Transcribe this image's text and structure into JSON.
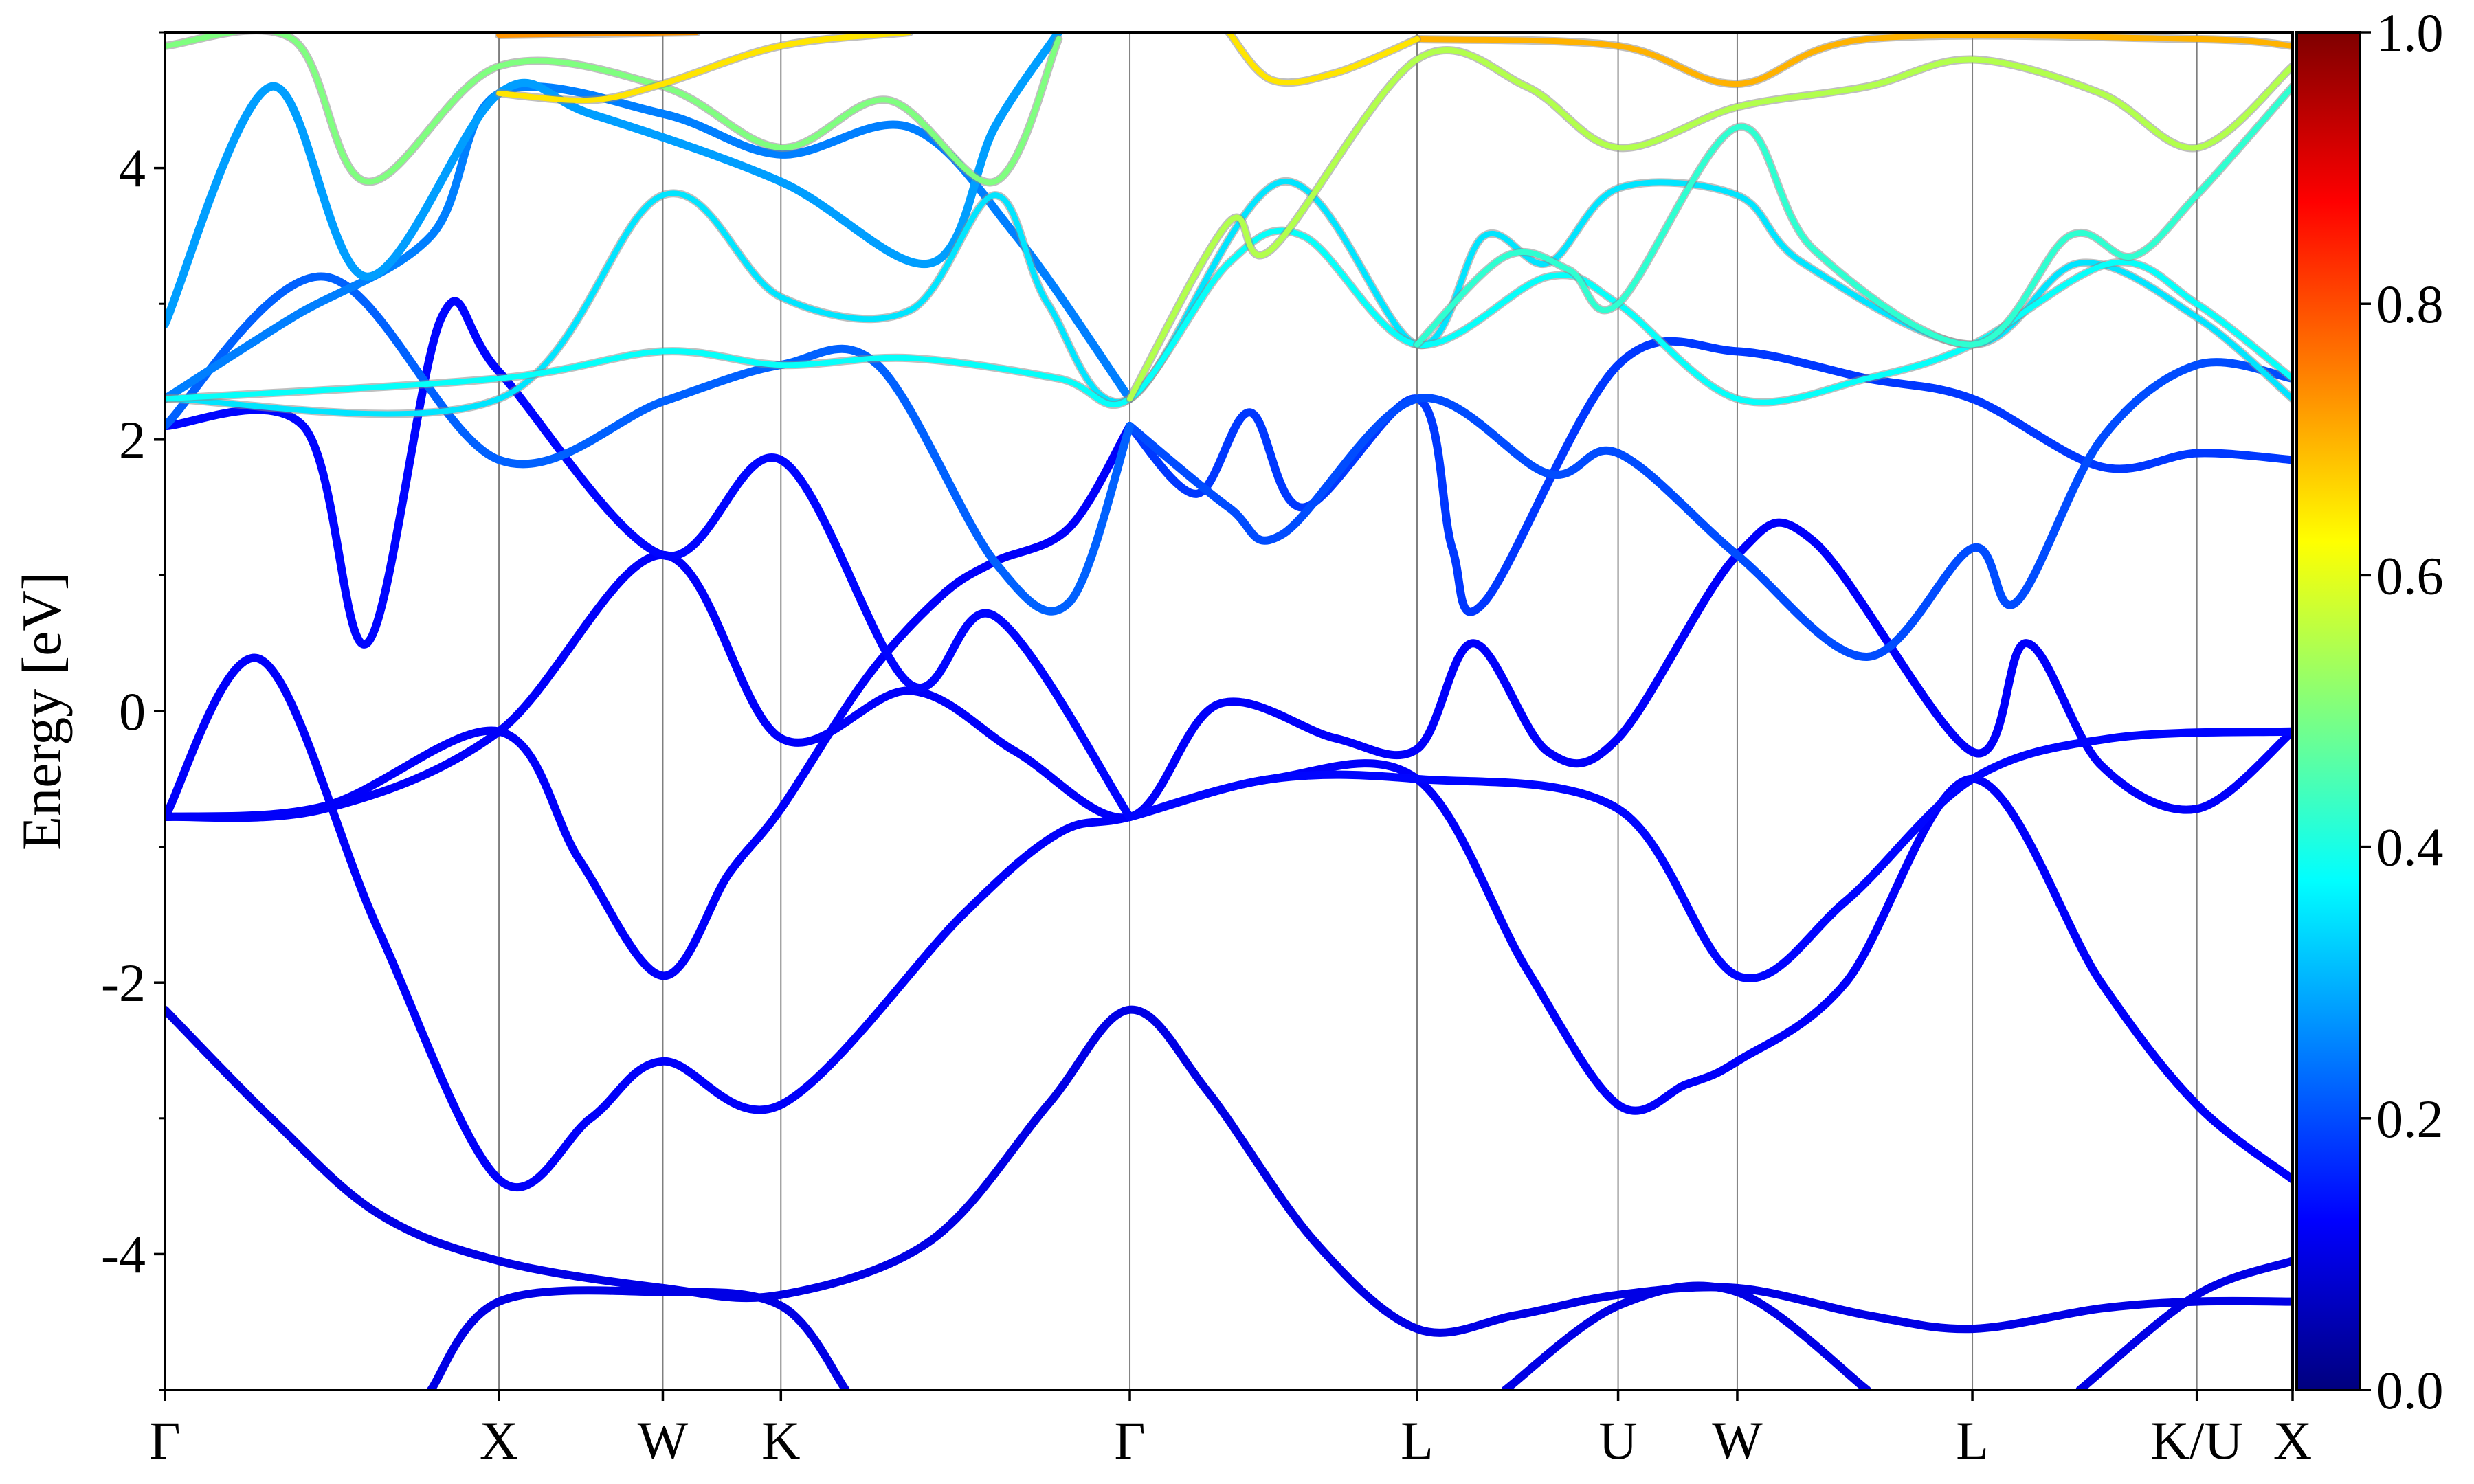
{
  "chart_data": {
    "type": "line",
    "title": "",
    "xlabel": "",
    "ylabel": "Energy [eV]",
    "ylim": [
      -5,
      5
    ],
    "yticks": [
      -4,
      -2,
      0,
      2,
      4
    ],
    "ytick_labels": [
      "-4",
      "-2",
      "0",
      "2",
      "4"
    ],
    "yminor_step": 1,
    "xlim": [
      0,
      20
    ],
    "kpoints": [
      {
        "label": "Γ",
        "x": 0
      },
      {
        "label": "X",
        "x": 3.14
      },
      {
        "label": "W",
        "x": 4.68
      },
      {
        "label": "K",
        "x": 5.79
      },
      {
        "label": "Γ",
        "x": 9.07
      },
      {
        "label": "L",
        "x": 11.77
      },
      {
        "label": "U",
        "x": 13.66
      },
      {
        "label": "W",
        "x": 14.78
      },
      {
        "label": "L",
        "x": 16.99
      },
      {
        "label": "K/U",
        "x": 19.1
      },
      {
        "label": "X",
        "x": 20
      }
    ],
    "vertical_lines": true,
    "grid": false,
    "colorbar": {
      "range": [
        0,
        1
      ],
      "ticks": [
        "0.0",
        "0.2",
        "0.4",
        "0.6",
        "0.8",
        "1.0"
      ],
      "colormap": "jet",
      "stops": [
        "#00007f",
        "#0000ff",
        "#007fff",
        "#00ffff",
        "#7fff7f",
        "#ffff00",
        "#ff7f00",
        "#ff0000",
        "#7f0000"
      ]
    },
    "series": [
      {
        "c": 0.1,
        "points": [
          [
            0,
            -2.2
          ],
          [
            1.0,
            -3.0
          ],
          [
            2.0,
            -3.7
          ],
          [
            3.14,
            -4.05
          ],
          [
            4.68,
            -4.25
          ],
          [
            5.79,
            -4.3
          ],
          [
            7.2,
            -3.9
          ],
          [
            8.3,
            -2.9
          ],
          [
            9.07,
            -2.2
          ],
          [
            9.8,
            -2.8
          ],
          [
            10.8,
            -3.9
          ],
          [
            11.77,
            -4.55
          ],
          [
            12.7,
            -4.45
          ],
          [
            13.66,
            -4.3
          ],
          [
            14.78,
            -4.25
          ],
          [
            16.0,
            -4.45
          ],
          [
            16.99,
            -4.55
          ],
          [
            18.2,
            -4.4
          ],
          [
            19.1,
            -4.35
          ],
          [
            20,
            -4.35
          ]
        ]
      },
      {
        "c": 0.1,
        "points": [
          [
            2.5,
            -5.0
          ],
          [
            3.14,
            -4.35
          ],
          [
            4.68,
            -4.28
          ],
          [
            5.79,
            -4.38
          ],
          [
            6.4,
            -5.0
          ]
        ]
      },
      {
        "c": 0.1,
        "points": [
          [
            12.6,
            -5.0
          ],
          [
            13.66,
            -4.38
          ],
          [
            14.78,
            -4.28
          ],
          [
            16.0,
            -5.0
          ]
        ]
      },
      {
        "c": 0.1,
        "points": [
          [
            18.0,
            -5.0
          ],
          [
            19.1,
            -4.3
          ],
          [
            20,
            -4.05
          ]
        ]
      },
      {
        "c": 0.12,
        "points": [
          [
            0,
            -0.78
          ],
          [
            0.9,
            0.38
          ],
          [
            2.0,
            -1.6
          ],
          [
            3.14,
            -3.45
          ],
          [
            4.0,
            -3.0
          ],
          [
            4.68,
            -2.58
          ],
          [
            5.79,
            -2.9
          ],
          [
            7.5,
            -1.5
          ],
          [
            8.4,
            -0.9
          ],
          [
            9.07,
            -0.78
          ],
          [
            10.4,
            -0.5
          ],
          [
            11.77,
            -0.5
          ],
          [
            12.8,
            -1.9
          ],
          [
            13.66,
            -2.9
          ],
          [
            14.3,
            -2.75
          ],
          [
            14.78,
            -2.58
          ],
          [
            15.8,
            -2.0
          ],
          [
            16.99,
            -0.5
          ],
          [
            18.2,
            -2.0
          ],
          [
            19.1,
            -2.9
          ],
          [
            20,
            -3.45
          ]
        ]
      },
      {
        "c": 0.12,
        "points": [
          [
            0,
            -0.78
          ],
          [
            1.5,
            -0.7
          ],
          [
            3.14,
            -0.15
          ],
          [
            3.9,
            -1.1
          ],
          [
            4.68,
            -1.95
          ],
          [
            5.3,
            -1.2
          ],
          [
            5.79,
            -0.72
          ],
          [
            6.6,
            0.25
          ],
          [
            7.3,
            0.85
          ],
          [
            7.8,
            1.1
          ],
          [
            8.5,
            1.35
          ],
          [
            9.07,
            2.1
          ]
        ]
      },
      {
        "c": 0.12,
        "points": [
          [
            0,
            -0.78
          ],
          [
            1.5,
            -0.72
          ],
          [
            3.14,
            -0.15
          ],
          [
            4.68,
            1.15
          ],
          [
            5.79,
            -0.2
          ],
          [
            7.0,
            0.15
          ],
          [
            8.0,
            -0.3
          ],
          [
            9.07,
            -0.78
          ],
          [
            9.9,
            0.05
          ],
          [
            11.0,
            -0.2
          ],
          [
            11.77,
            -0.28
          ],
          [
            12.3,
            0.5
          ],
          [
            13.0,
            -0.3
          ],
          [
            13.66,
            -0.2
          ],
          [
            14.78,
            1.15
          ],
          [
            15.5,
            1.25
          ],
          [
            16.99,
            -0.3
          ],
          [
            17.5,
            0.5
          ],
          [
            18.2,
            -0.4
          ],
          [
            19.1,
            -0.72
          ],
          [
            20,
            -0.15
          ]
        ]
      },
      {
        "c": 0.13,
        "points": [
          [
            9.07,
            -0.78
          ],
          [
            10.4,
            -0.5
          ],
          [
            11.77,
            -0.5
          ],
          [
            13.66,
            -0.72
          ],
          [
            14.78,
            -1.95
          ],
          [
            15.8,
            -1.4
          ],
          [
            16.99,
            -0.5
          ],
          [
            18.3,
            -0.2
          ],
          [
            20,
            -0.15
          ]
        ]
      },
      {
        "c": 0.13,
        "points": [
          [
            9.07,
            -0.78
          ],
          [
            7.8,
            0.7
          ],
          [
            7.0,
            0.2
          ],
          [
            5.79,
            1.85
          ],
          [
            4.68,
            1.15
          ],
          [
            3.14,
            2.5
          ],
          [
            2.6,
            2.9
          ],
          [
            1.9,
            0.5
          ],
          [
            1.3,
            2.1
          ],
          [
            0,
            2.1
          ]
        ]
      },
      {
        "c": 0.18,
        "points": [
          [
            9.07,
            2.1
          ],
          [
            9.7,
            1.6
          ],
          [
            10.2,
            2.2
          ],
          [
            10.7,
            1.5
          ],
          [
            11.77,
            2.3
          ],
          [
            12.1,
            1.2
          ],
          [
            12.4,
            0.8
          ],
          [
            13.66,
            2.55
          ],
          [
            14.78,
            2.65
          ],
          [
            16.0,
            2.45
          ],
          [
            16.99,
            2.3
          ],
          [
            18.2,
            1.8
          ],
          [
            19.1,
            1.9
          ],
          [
            20,
            1.85
          ]
        ]
      },
      {
        "c": 0.2,
        "points": [
          [
            9.07,
            2.1
          ],
          [
            10.0,
            1.5
          ],
          [
            10.5,
            1.3
          ],
          [
            11.77,
            2.3
          ],
          [
            13.0,
            1.75
          ],
          [
            13.66,
            1.9
          ],
          [
            14.78,
            1.15
          ],
          [
            16.0,
            0.4
          ],
          [
            16.99,
            1.2
          ],
          [
            17.4,
            0.8
          ],
          [
            18.2,
            2.0
          ],
          [
            19.1,
            2.55
          ],
          [
            20,
            2.45
          ]
        ]
      },
      {
        "c": 0.22,
        "points": [
          [
            0,
            2.1
          ],
          [
            1.5,
            3.2
          ],
          [
            3.14,
            1.85
          ],
          [
            4.68,
            2.28
          ],
          [
            5.79,
            2.55
          ],
          [
            6.7,
            2.55
          ],
          [
            7.8,
            1.1
          ],
          [
            8.5,
            0.8
          ],
          [
            9.07,
            2.1
          ]
        ]
      },
      {
        "c": 0.25,
        "points": [
          [
            0,
            2.3
          ],
          [
            1.2,
            2.9
          ],
          [
            2.5,
            3.5
          ],
          [
            3.14,
            4.55
          ],
          [
            4.68,
            4.4
          ],
          [
            5.79,
            4.1
          ],
          [
            7.0,
            4.3
          ],
          [
            8.0,
            3.5
          ],
          [
            9.07,
            2.3
          ]
        ]
      },
      {
        "c": 0.28,
        "points": [
          [
            0,
            2.85
          ],
          [
            1.0,
            4.6
          ],
          [
            1.9,
            3.2
          ],
          [
            3.14,
            4.55
          ],
          [
            4.0,
            4.4
          ],
          [
            5.79,
            3.9
          ],
          [
            7.2,
            3.3
          ],
          [
            7.8,
            4.3
          ],
          [
            8.4,
            5.0
          ]
        ]
      },
      {
        "c": 0.35,
        "points": [
          [
            0,
            2.3
          ],
          [
            3.14,
            2.3
          ],
          [
            4.68,
            3.8
          ],
          [
            5.79,
            3.05
          ],
          [
            7.0,
            2.95
          ],
          [
            7.8,
            3.8
          ],
          [
            8.3,
            3.0
          ],
          [
            9.07,
            2.3
          ],
          [
            10.5,
            3.9
          ],
          [
            11.77,
            2.7
          ],
          [
            12.4,
            3.5
          ],
          [
            13.0,
            3.3
          ],
          [
            13.66,
            3.85
          ],
          [
            14.78,
            3.8
          ],
          [
            15.4,
            3.3
          ],
          [
            16.99,
            2.7
          ],
          [
            18.0,
            3.3
          ],
          [
            19.1,
            2.9
          ],
          [
            20,
            2.3
          ]
        ]
      },
      {
        "c": 0.38,
        "points": [
          [
            0,
            2.3
          ],
          [
            3.14,
            2.45
          ],
          [
            4.68,
            2.65
          ],
          [
            5.79,
            2.55
          ],
          [
            7.0,
            2.6
          ],
          [
            8.4,
            2.45
          ],
          [
            9.07,
            2.3
          ],
          [
            10.0,
            3.3
          ],
          [
            10.7,
            3.5
          ],
          [
            11.77,
            2.7
          ],
          [
            13.0,
            3.2
          ],
          [
            13.66,
            3.0
          ],
          [
            14.78,
            2.3
          ],
          [
            16.0,
            2.45
          ],
          [
            16.99,
            2.7
          ],
          [
            18.3,
            3.3
          ],
          [
            19.1,
            3.0
          ],
          [
            20,
            2.45
          ]
        ]
      },
      {
        "c": 0.42,
        "points": [
          [
            11.77,
            2.7
          ],
          [
            12.6,
            3.35
          ],
          [
            13.2,
            3.25
          ],
          [
            13.66,
            3.0
          ],
          [
            14.78,
            4.3
          ],
          [
            15.5,
            3.4
          ],
          [
            16.99,
            2.7
          ],
          [
            17.9,
            3.5
          ],
          [
            18.5,
            3.35
          ],
          [
            19.1,
            3.8
          ],
          [
            20,
            4.6
          ]
        ]
      },
      {
        "c": 0.5,
        "points": [
          [
            0,
            4.9
          ],
          [
            1.2,
            4.95
          ],
          [
            1.9,
            3.9
          ],
          [
            3.14,
            4.75
          ],
          [
            4.68,
            4.6
          ],
          [
            5.79,
            4.15
          ],
          [
            6.8,
            4.5
          ],
          [
            7.8,
            3.9
          ],
          [
            8.4,
            4.95
          ]
        ]
      },
      {
        "c": 0.55,
        "points": [
          [
            9.07,
            2.3
          ],
          [
            10.0,
            3.6
          ],
          [
            10.4,
            3.4
          ],
          [
            11.77,
            4.8
          ],
          [
            12.8,
            4.6
          ],
          [
            13.66,
            4.15
          ],
          [
            14.78,
            4.45
          ],
          [
            16.0,
            4.6
          ],
          [
            16.99,
            4.8
          ],
          [
            18.2,
            4.55
          ],
          [
            19.1,
            4.15
          ],
          [
            20,
            4.75
          ]
        ]
      },
      {
        "c": 0.65,
        "points": [
          [
            3.14,
            4.55
          ],
          [
            4.0,
            4.5
          ],
          [
            4.68,
            4.62
          ],
          [
            5.79,
            4.9
          ],
          [
            7.0,
            5.0
          ]
        ]
      },
      {
        "c": 0.7,
        "points": [
          [
            11.77,
            4.95
          ],
          [
            13.66,
            4.9
          ],
          [
            14.78,
            4.62
          ],
          [
            16.0,
            4.95
          ],
          [
            19.1,
            4.95
          ],
          [
            20,
            4.9
          ]
        ]
      },
      {
        "c": 0.73,
        "points": [
          [
            3.14,
            4.98
          ],
          [
            5.0,
            5.0
          ]
        ]
      },
      {
        "c": 0.65,
        "points": [
          [
            10.0,
            5.0
          ],
          [
            10.4,
            4.65
          ],
          [
            11.0,
            4.7
          ],
          [
            11.77,
            4.95
          ]
        ]
      }
    ]
  }
}
